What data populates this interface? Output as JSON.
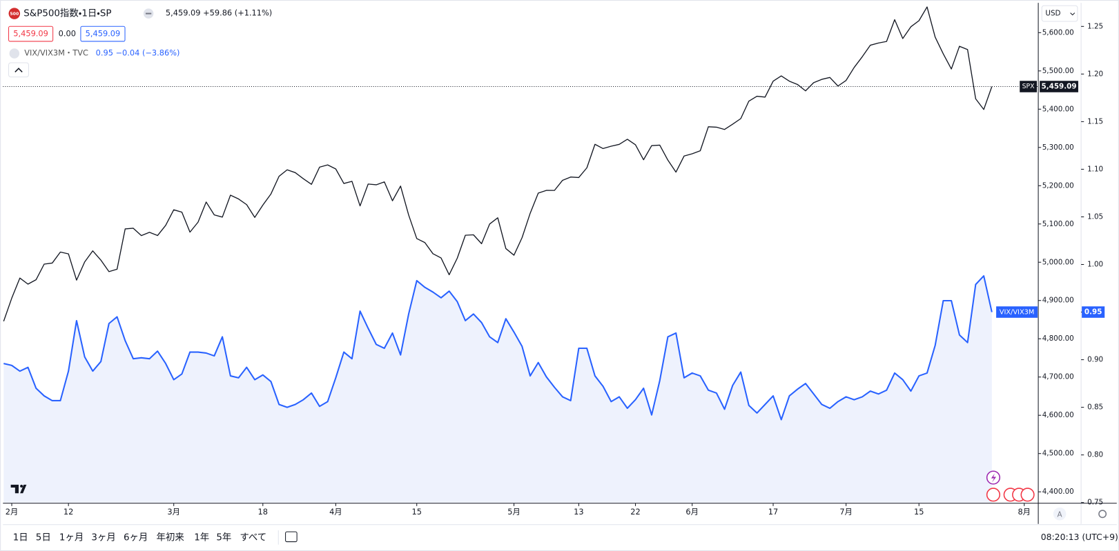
{
  "header": {
    "title": "S&P500指数・1日・SP",
    "quote": "5,459.09 +59.86 (+1.11%)",
    "ohlc": [
      "5,459.09",
      "0.00",
      "5,459.09"
    ],
    "secondary": "VIX/VIX3M・TVC",
    "secondary_quote": "0.95 −0.04 (−3.86%)",
    "logo": "500"
  },
  "toolbar": {
    "ranges": [
      "1日",
      "5日",
      "1ヶ月",
      "3ヶ月",
      "6ヶ月",
      "年初来",
      "1年",
      "5年",
      "すべて"
    ],
    "clock": "08:20:13 (UTC+9)",
    "currency": "USD",
    "auto": "A"
  },
  "chart_data": {
    "type": "line",
    "grid": false,
    "categories": [
      null,
      "2月",
      null,
      null,
      null,
      null,
      null,
      null,
      "12",
      null,
      null,
      null,
      null,
      null,
      null,
      null,
      null,
      null,
      null,
      null,
      null,
      "3月",
      null,
      null,
      null,
      null,
      null,
      null,
      null,
      null,
      null,
      null,
      "18",
      null,
      null,
      null,
      null,
      null,
      null,
      null,
      null,
      "4月",
      null,
      null,
      null,
      null,
      null,
      null,
      null,
      null,
      null,
      "15",
      null,
      null,
      null,
      null,
      null,
      null,
      null,
      null,
      null,
      null,
      null,
      "5月",
      null,
      null,
      null,
      null,
      null,
      null,
      null,
      "13",
      null,
      null,
      null,
      null,
      null,
      null,
      "22",
      null,
      null,
      null,
      null,
      null,
      null,
      "6月",
      null,
      null,
      null,
      null,
      null,
      null,
      null,
      null,
      null,
      "17",
      null,
      null,
      null,
      null,
      null,
      null,
      null,
      null,
      "7月",
      null,
      null,
      null,
      null,
      null,
      null,
      null,
      null,
      "15",
      null,
      null,
      null,
      null,
      null,
      null,
      null,
      null,
      null,
      null,
      null,
      null,
      "8月"
    ],
    "ylim": [
      4372,
      5676
    ],
    "yticks": [
      {
        "value": 4400,
        "label": "4,400.00"
      },
      {
        "value": 4500,
        "label": "4,500.00"
      },
      {
        "value": 4600,
        "label": "4,600.00"
      },
      {
        "value": 4700,
        "label": "4,700.00"
      },
      {
        "value": 4800,
        "label": "4,800.00"
      },
      {
        "value": 4900,
        "label": "4,900.00"
      },
      {
        "value": 5000,
        "label": "5,000.00"
      },
      {
        "value": 5100,
        "label": "5,100.00"
      },
      {
        "value": 5200,
        "label": "5,200.00"
      },
      {
        "value": 5300,
        "label": "5,300.00"
      },
      {
        "value": 5400,
        "label": "5,400.00"
      },
      {
        "value": 5500,
        "label": "5,500.00"
      },
      {
        "value": 5600,
        "label": "5,600.00"
      }
    ],
    "y2lim": [
      0.75,
      1.274
    ],
    "y2ticks": [
      0.75,
      {
        "value": 0.8,
        "label": "0.80"
      },
      0.85,
      {
        "value": 0.9,
        "label": "0.90"
      },
      0.95,
      {
        "value": 1.0,
        "label": "1.00"
      },
      1.05,
      {
        "value": 1.1,
        "label": "1.10"
      },
      1.15,
      {
        "value": 1.2,
        "label": "1.20"
      },
      1.25
    ],
    "series": [
      {
        "name": "S&P500指数",
        "tag": "SPX",
        "last_label": "5,459.09",
        "color": "#131722",
        "values": [
          4845.65,
          4906.19,
          4958.61,
          4942.81,
          4954.23,
          4995.06,
          4997.91,
          5026.61,
          5021.84,
          4953.17,
          5000.62,
          5029.73,
          5005.57,
          4975.51,
          4981.8,
          5087.03,
          5088.8,
          5069.53,
          5078.18,
          5069.76,
          5096.27,
          5137.08,
          5130.95,
          5078.65,
          5104.76,
          5157.36,
          5123.69,
          5117.94,
          5175.27,
          5165.31,
          5150.48,
          5117.09,
          5149.42,
          5178.51,
          5224.62,
          5241.53,
          5234.18,
          5218.19,
          5203.58,
          5248.49,
          5254.35,
          5243.77,
          5205.81,
          5211.49,
          5147.21,
          5204.34,
          5202.39,
          5209.91,
          5160.64,
          5199.06,
          5123.41,
          5061.82,
          5051.41,
          5022.21,
          5011.12,
          4967.23,
          5010.6,
          5070.55,
          5071.63,
          5048.42,
          5099.96,
          5116.17,
          5035.69,
          5018.39,
          5064.2,
          5127.79,
          5180.74,
          5187.7,
          5187.67,
          5214.08,
          5222.68,
          5221.42,
          5246.68,
          5308.15,
          5297.1,
          5303.27,
          5308.13,
          5321.41,
          5307.01,
          5267.84,
          5304.72,
          5306.04,
          5266.95,
          5235.48,
          5277.51,
          5283.4,
          5291.34,
          5354.03,
          5352.96,
          5346.99,
          5360.79,
          5375.32,
          5421.03,
          5433.74,
          5431.6,
          5473.23,
          5487.03,
          5473.17,
          5464.62,
          5447.87,
          5469.3,
          5477.9,
          5482.87,
          5460.48,
          5475.09,
          5509.01,
          5537.02,
          5567.19,
          5572.85,
          5576.98,
          5633.91,
          5584.54,
          5615.35,
          5631.22,
          5667.2,
          5588.27,
          5544.59,
          5505.0,
          5564.41,
          5555.74,
          5427.13,
          5399.22,
          5459.09,
          null,
          null,
          null,
          null
        ]
      },
      {
        "name": "VIX/VIX3M",
        "tag": "VIX/VIX3M",
        "axis": "y2",
        "color": "#2962ff",
        "area_color": "#eef2fd",
        "values": [
          0.896,
          0.894,
          0.888,
          0.892,
          0.87,
          0.862,
          0.857,
          0.857,
          0.888,
          0.941,
          0.903,
          0.888,
          0.898,
          0.938,
          0.945,
          0.92,
          0.901,
          0.902,
          0.901,
          0.909,
          0.896,
          0.879,
          0.885,
          0.908,
          0.908,
          0.907,
          0.904,
          0.924,
          0.883,
          0.881,
          0.892,
          0.879,
          0.884,
          0.877,
          0.853,
          0.85,
          0.853,
          0.858,
          0.865,
          0.851,
          0.856,
          0.881,
          0.908,
          0.901,
          0.951,
          0.933,
          0.916,
          0.912,
          0.928,
          0.905,
          0.948,
          0.983,
          0.976,
          0.971,
          0.965,
          0.972,
          0.961,
          0.941,
          0.948,
          0.939,
          0.924,
          0.918,
          0.943,
          0.929,
          0.914,
          0.883,
          0.897,
          0.882,
          0.871,
          0.861,
          0.857,
          0.912,
          0.912,
          0.883,
          0.872,
          0.856,
          0.861,
          0.849,
          0.858,
          0.87,
          0.842,
          0.878,
          0.924,
          0.928,
          0.881,
          0.886,
          0.883,
          0.868,
          0.865,
          0.848,
          0.873,
          0.887,
          0.852,
          0.844,
          0.853,
          0.862,
          0.837,
          0.862,
          0.869,
          0.875,
          0.864,
          0.853,
          0.849,
          0.856,
          0.861,
          0.858,
          0.861,
          0.867,
          0.864,
          0.868,
          0.886,
          0.879,
          0.867,
          0.883,
          0.886,
          0.915,
          0.962,
          0.962,
          0.926,
          0.918,
          0.979,
          0.988,
          0.95,
          null,
          null,
          null,
          null
        ]
      }
    ]
  }
}
